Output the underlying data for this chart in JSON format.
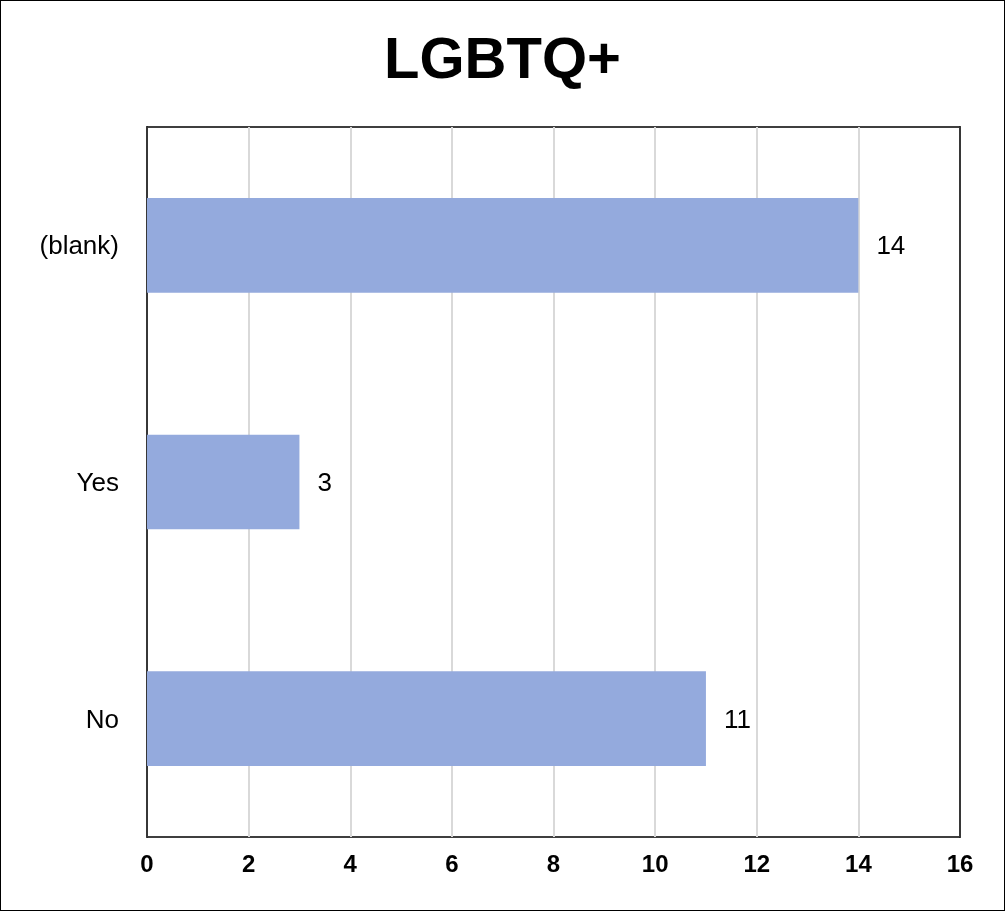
{
  "chart_data": {
    "type": "bar",
    "title": "LGBTQ+",
    "orientation": "horizontal",
    "categories": [
      "(blank)",
      "Yes",
      "No"
    ],
    "values": [
      14,
      3,
      11
    ],
    "color": "#94aadd",
    "xlim": [
      0,
      16
    ],
    "xticks": [
      0,
      2,
      4,
      6,
      8,
      10,
      12,
      14,
      16
    ],
    "grid": "x",
    "data_labels": true
  }
}
